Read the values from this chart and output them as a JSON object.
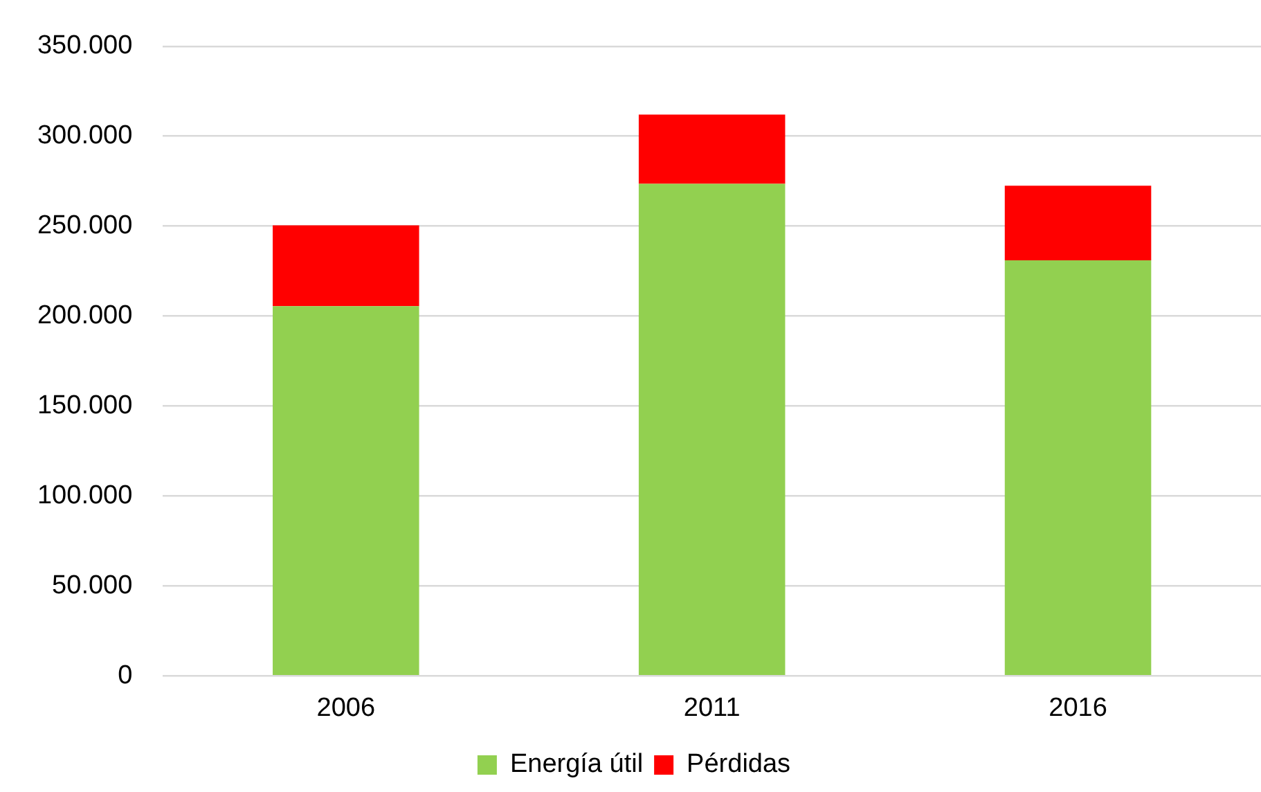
{
  "chart_data": {
    "type": "bar",
    "stacked": true,
    "categories": [
      "2006",
      "2011",
      "2016"
    ],
    "series": [
      {
        "name": "Energía útil",
        "color": "#92d050",
        "values": [
          205500,
          273500,
          231000
        ]
      },
      {
        "name": "Pérdidas",
        "color": "#ff0000",
        "values": [
          45000,
          38500,
          41500
        ]
      }
    ],
    "ylim": [
      0,
      350000
    ],
    "yticks": [
      {
        "value": 0,
        "label": "0"
      },
      {
        "value": 50000,
        "label": "50.000"
      },
      {
        "value": 100000,
        "label": "100.000"
      },
      {
        "value": 150000,
        "label": "150.000"
      },
      {
        "value": 200000,
        "label": "200.000"
      },
      {
        "value": 250000,
        "label": "250.000"
      },
      {
        "value": 300000,
        "label": "300.000"
      },
      {
        "value": 350000,
        "label": "350.000"
      }
    ],
    "grid": "y",
    "legend": "bottom"
  }
}
